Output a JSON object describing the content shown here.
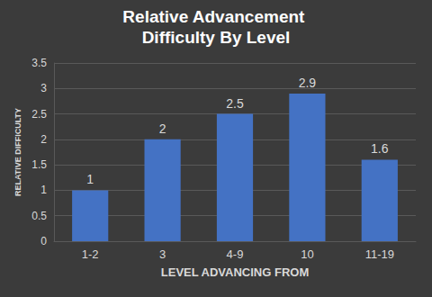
{
  "chart_data": {
    "type": "bar",
    "title": "Relative Advancement Difficulty By Level",
    "x_label": "LEVEL ADVANCING FROM",
    "y_label": "RELATIVE DIFFICULTY",
    "categories": [
      "1-2",
      "3",
      "4-9",
      "10",
      "11-19"
    ],
    "values": [
      1,
      2,
      2.5,
      2.9,
      1.6
    ],
    "color": "#4472c4",
    "ylim": [
      0,
      3.5
    ],
    "yticks": [
      0,
      0.5,
      1,
      1.5,
      2,
      2.5,
      3,
      3.5
    ],
    "grid": true,
    "data_labels": true
  }
}
